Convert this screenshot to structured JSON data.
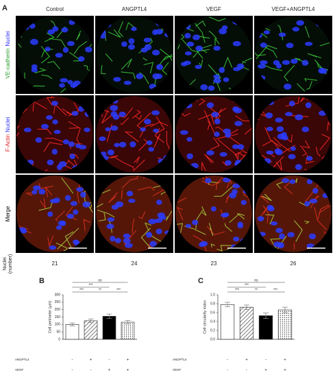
{
  "panel_labels": [
    "A",
    "B",
    "C"
  ],
  "columns": [
    "Control",
    "ANGPTL4",
    "VEGF",
    "VEGF+ANGPTL4"
  ],
  "row_labels": [
    {
      "parts": [
        {
          "text": "VE-cadherin",
          "color": "#2a9a2a"
        },
        {
          "text": "Nuclei",
          "color": "#2a2aff"
        }
      ]
    },
    {
      "parts": [
        {
          "text": "F-Actin",
          "color": "#e02020"
        },
        {
          "text": "Nuclei",
          "color": "#2a2aff"
        }
      ]
    },
    {
      "parts": [
        {
          "text": "Merge",
          "color": "#000000"
        }
      ]
    }
  ],
  "nuclei_label": [
    "Nuclei",
    "(number)"
  ],
  "nuclei_counts": [
    21,
    24,
    23,
    26
  ],
  "conditions": [
    {
      "name": "ANGPTL4",
      "signs": [
        "-",
        "+",
        "-",
        "+"
      ]
    },
    {
      "name": "VEGF",
      "signs": [
        "-",
        "-",
        "+",
        "+"
      ]
    }
  ],
  "chart_data": [
    {
      "type": "bar",
      "y_label": "Cell perimeter (µm)",
      "values": [
        100,
        125,
        155,
        115
      ],
      "errors": [
        10,
        12,
        15,
        12
      ],
      "styles": [
        "plain",
        "hatched",
        "solid",
        "dotted"
      ],
      "ylim": [
        0,
        300
      ],
      "yticks": [
        0,
        50,
        100,
        150,
        200,
        250,
        300
      ],
      "comparisons": [
        {
          "from": 0,
          "to": 3,
          "label": "ns"
        },
        {
          "from": 0,
          "to": 2,
          "label": "***"
        },
        {
          "from": 0,
          "to": 1,
          "label": "***"
        },
        {
          "from": 1,
          "to": 2,
          "label": "**"
        },
        {
          "from": 2,
          "to": 3,
          "label": "***"
        }
      ]
    },
    {
      "type": "bar",
      "y_label": "Cell circularity index",
      "values": [
        0.78,
        0.72,
        0.53,
        0.66
      ],
      "errors": [
        0.05,
        0.05,
        0.06,
        0.06
      ],
      "styles": [
        "plain",
        "hatched",
        "solid",
        "dotted"
      ],
      "ylim": [
        0,
        1.0
      ],
      "yticks": [
        {
          "value": 0,
          "label": "0.0"
        },
        {
          "value": 0.2,
          "label": "0.2"
        },
        {
          "value": 0.4,
          "label": "0.4"
        },
        {
          "value": 0.6,
          "label": "0.6"
        },
        {
          "value": 0.8,
          "label": "0.8"
        },
        {
          "value": 1.0,
          "label": "1.0"
        }
      ],
      "comparisons": [
        {
          "from": 0,
          "to": 3,
          "label": "ns"
        },
        {
          "from": 0,
          "to": 2,
          "label": "***"
        },
        {
          "from": 0,
          "to": 1,
          "label": "***"
        },
        {
          "from": 1,
          "to": 2,
          "label": "**"
        },
        {
          "from": 2,
          "to": 3,
          "label": "***"
        }
      ]
    }
  ]
}
